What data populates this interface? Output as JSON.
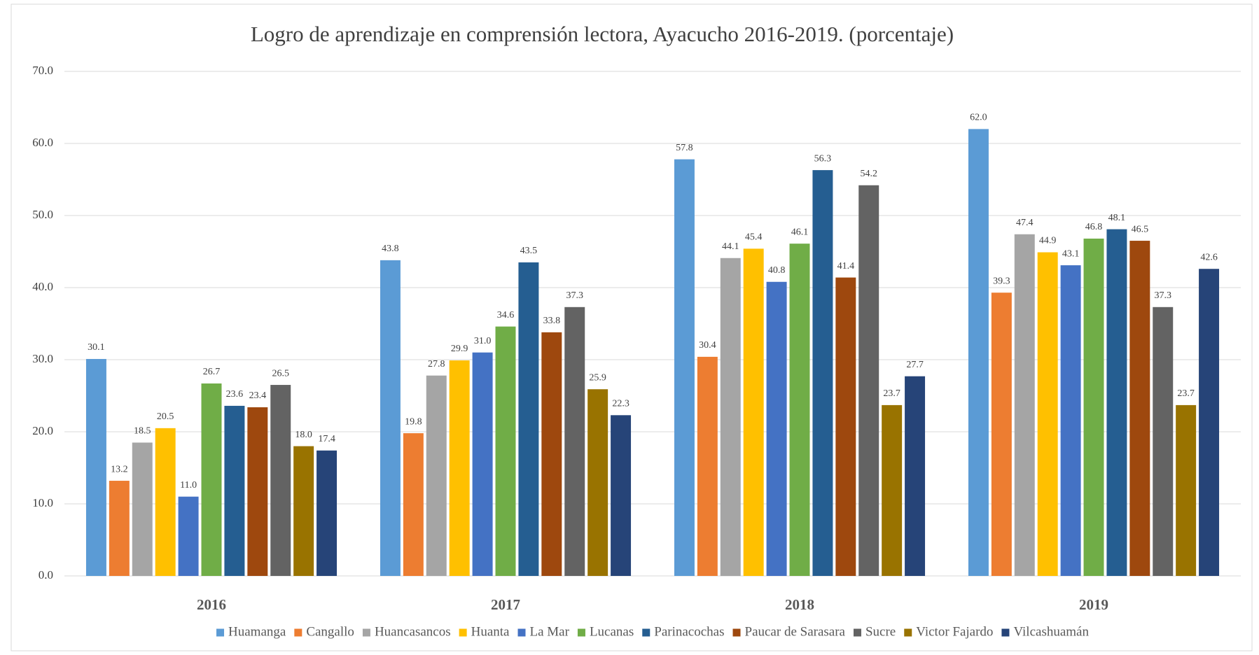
{
  "chart_data": {
    "type": "bar",
    "title": "Logro de aprendizaje en comprensión lectora, Ayacucho 2016-2019. (porcentaje)",
    "categories": [
      "2016",
      "2017",
      "2018",
      "2019"
    ],
    "ylim": [
      0,
      70
    ],
    "yticks": [
      {
        "value": 0,
        "label": "0.0"
      },
      {
        "value": 10,
        "label": "10.0"
      },
      {
        "value": 20,
        "label": "20.0"
      },
      {
        "value": 30,
        "label": "30.0"
      },
      {
        "value": 40,
        "label": "40.0"
      },
      {
        "value": 50,
        "label": "50.0"
      },
      {
        "value": 60,
        "label": "60.0"
      },
      {
        "value": 70,
        "label": "70.0"
      }
    ],
    "grid": true,
    "legend": "bottom",
    "series": [
      {
        "name": "Huamanga",
        "color": "#5b9bd5",
        "values": [
          30.1,
          43.8,
          57.8,
          62.0
        ],
        "value_labels": [
          "30.1",
          "43.8",
          "57.8",
          "62.0"
        ]
      },
      {
        "name": "Cangallo",
        "color": "#ed7d31",
        "values": [
          13.2,
          19.8,
          30.4,
          39.3
        ],
        "value_labels": [
          "13.2",
          "19.8",
          "30.4",
          "39.3"
        ]
      },
      {
        "name": "Huancasancos",
        "color": "#a5a5a5",
        "values": [
          18.5,
          27.8,
          44.1,
          47.4
        ],
        "value_labels": [
          "18.5",
          "27.8",
          "44.1",
          "47.4"
        ]
      },
      {
        "name": "Huanta",
        "color": "#ffc000",
        "values": [
          20.5,
          29.9,
          45.4,
          44.9
        ],
        "value_labels": [
          "20.5",
          "29.9",
          "45.4",
          "44.9"
        ]
      },
      {
        "name": "La Mar",
        "color": "#4472c4",
        "values": [
          11.0,
          31.0,
          40.8,
          43.1
        ],
        "value_labels": [
          "11.0",
          "31.0",
          "40.8",
          "43.1"
        ]
      },
      {
        "name": "Lucanas",
        "color": "#70ad47",
        "values": [
          26.7,
          34.6,
          46.1,
          46.8
        ],
        "value_labels": [
          "26.7",
          "34.6",
          "46.1",
          "46.8"
        ]
      },
      {
        "name": "Parinacochas",
        "color": "#255e91",
        "values": [
          23.6,
          43.5,
          56.3,
          48.1
        ],
        "value_labels": [
          "23.6",
          "43.5",
          "56.3",
          "48.1"
        ]
      },
      {
        "name": "Paucar de Sarasara",
        "color": "#9e480e",
        "values": [
          23.4,
          33.8,
          41.4,
          46.5
        ],
        "value_labels": [
          "23.4",
          "33.8",
          "41.4",
          "46.5"
        ]
      },
      {
        "name": "Sucre",
        "color": "#636363",
        "values": [
          26.5,
          37.3,
          54.2,
          37.3
        ],
        "value_labels": [
          "26.5",
          "37.3",
          "54.2",
          "37.3"
        ]
      },
      {
        "name": "Victor Fajardo",
        "color": "#997300",
        "values": [
          18.0,
          25.9,
          23.7,
          23.7
        ],
        "value_labels": [
          "18.0",
          "25.9",
          "23.7",
          "23.7"
        ]
      },
      {
        "name": "Vilcashuamán",
        "color": "#264478",
        "values": [
          17.4,
          22.3,
          27.7,
          42.6
        ],
        "value_labels": [
          "17.4",
          "22.3",
          "27.7",
          "42.6"
        ]
      }
    ]
  }
}
